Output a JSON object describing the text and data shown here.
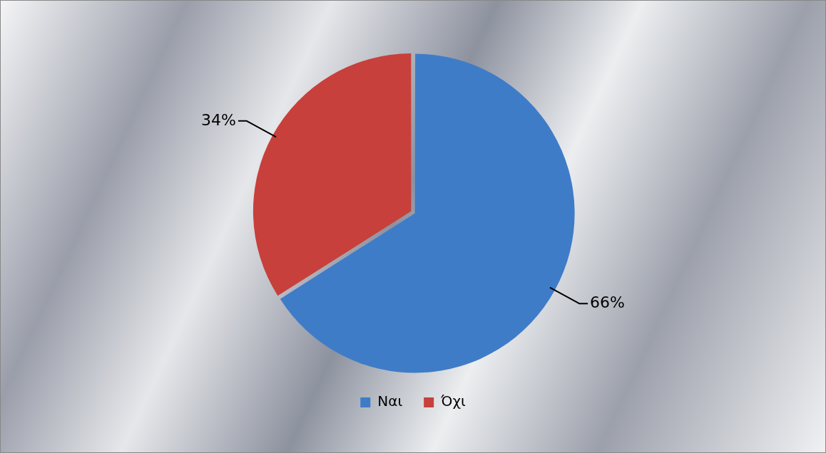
{
  "chart_data": {
    "type": "pie",
    "categories": [
      "Ναι",
      "Όχι"
    ],
    "values": [
      66,
      34
    ],
    "colors": [
      "#3f7cc8",
      "#c8403b"
    ],
    "value_labels": [
      "66%",
      "34%"
    ],
    "legend": "bottom"
  }
}
